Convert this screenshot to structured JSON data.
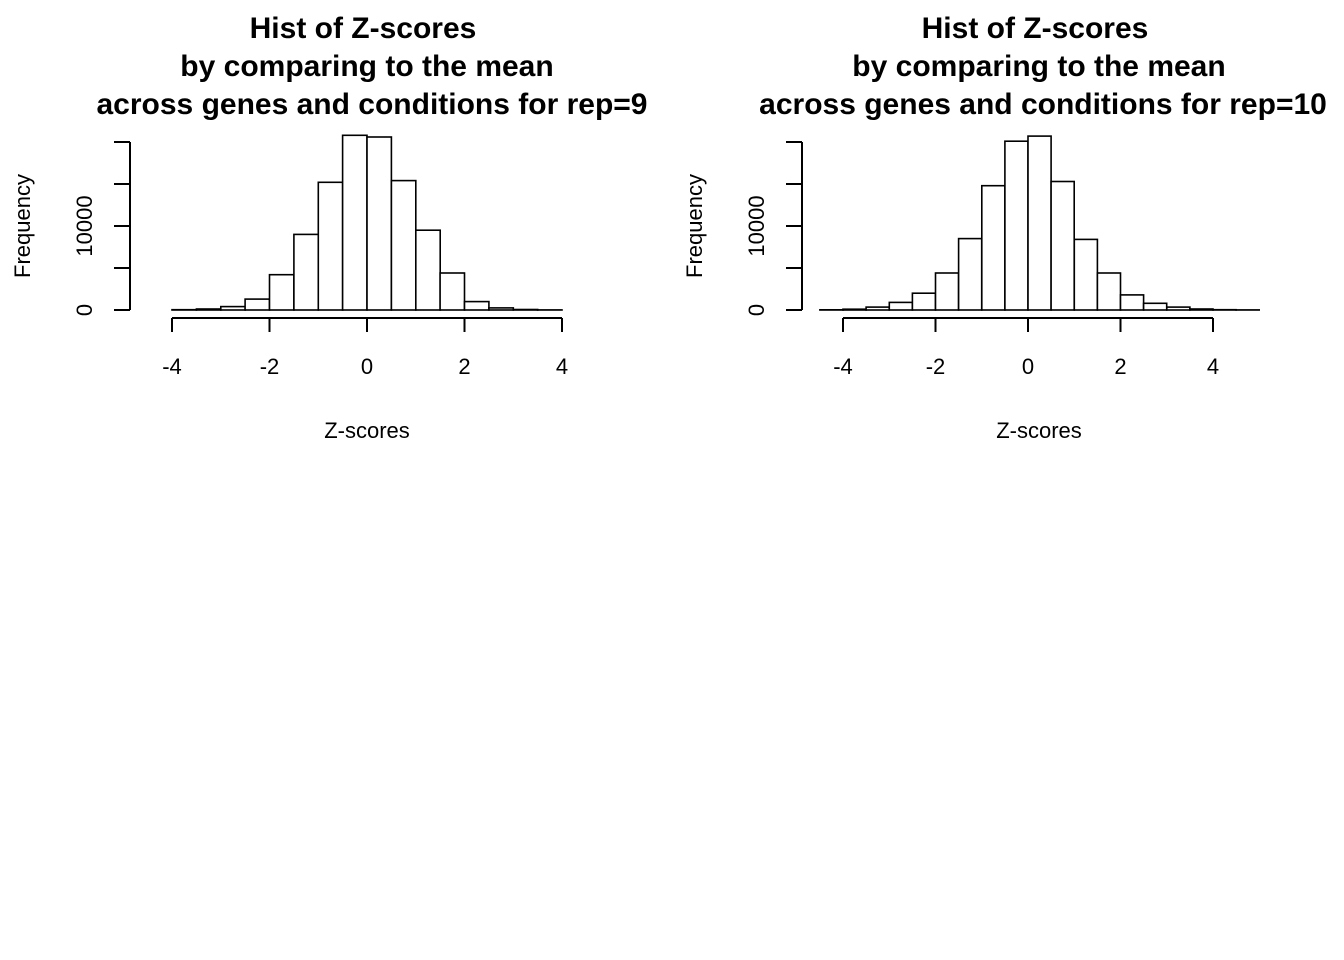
{
  "chart_data": [
    {
      "type": "bar",
      "title": [
        "Hist of Z-scores",
        "by comparing to the mean",
        "across genes and conditions for rep=9"
      ],
      "xlabel": "Z-scores",
      "ylabel": "Frequency",
      "xlim": [
        -4,
        4
      ],
      "ylim": [
        0,
        20000
      ],
      "xticks": [
        "-4",
        "-2",
        "0",
        "2",
        "4"
      ],
      "yticks": [
        "0",
        "",
        "10000",
        "",
        ""
      ],
      "bin_width": 0.5,
      "bin_edges": [
        -4.5,
        -4,
        -3.5,
        -3,
        -2.5,
        -2,
        -1.5,
        -1,
        -0.5,
        0,
        0.5,
        1,
        1.5,
        2,
        2.5,
        3,
        3.5,
        4,
        4.5
      ],
      "values": [
        3,
        30,
        120,
        400,
        1300,
        4200,
        9000,
        15200,
        20800,
        20600,
        15400,
        9500,
        4400,
        1000,
        250,
        60,
        15,
        3
      ]
    },
    {
      "type": "bar",
      "title": [
        "Hist of Z-scores",
        "by comparing to the mean",
        "across genes and conditions for rep=10"
      ],
      "xlabel": "Z-scores",
      "ylabel": "Frequency",
      "xlim": [
        -4,
        4
      ],
      "ylim": [
        0,
        20000
      ],
      "xticks": [
        "-4",
        "-2",
        "0",
        "2",
        "4"
      ],
      "yticks": [
        "0",
        "",
        "10000",
        "",
        ""
      ],
      "bin_width": 0.5,
      "bin_edges": [
        -4.5,
        -4,
        -3.5,
        -3,
        -2.5,
        -2,
        -1.5,
        -1,
        -0.5,
        0,
        0.5,
        1,
        1.5,
        2,
        2.5,
        3,
        3.5,
        4,
        4.5,
        5
      ],
      "values": [
        20,
        100,
        350,
        900,
        2000,
        4400,
        8500,
        14800,
        20100,
        20700,
        15300,
        8400,
        4400,
        1800,
        800,
        350,
        120,
        40,
        10
      ]
    }
  ]
}
